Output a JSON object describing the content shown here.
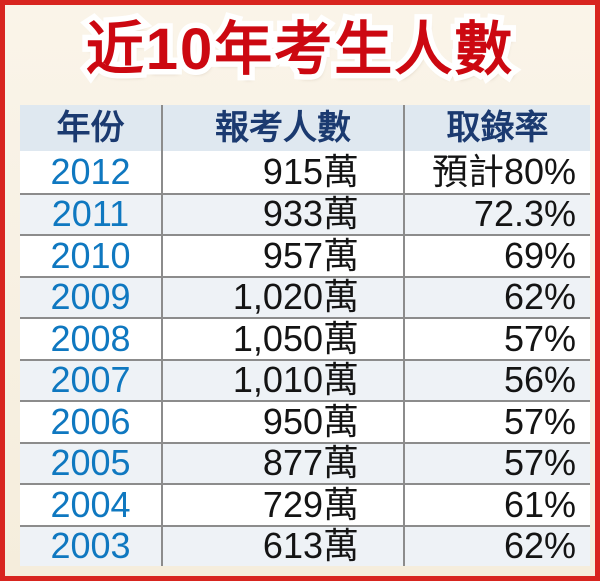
{
  "title": "近10年考生人數",
  "table": {
    "headers": {
      "year": "年份",
      "applicants": "報考人數",
      "rate": "取錄率"
    },
    "rows": [
      {
        "year": "2012",
        "applicants": "915萬",
        "rate": "預計80%"
      },
      {
        "year": "2011",
        "applicants": "933萬",
        "rate": "72.3%"
      },
      {
        "year": "2010",
        "applicants": "957萬",
        "rate": "69%"
      },
      {
        "year": "2009",
        "applicants": "1,020萬",
        "rate": "62%"
      },
      {
        "year": "2008",
        "applicants": "1,050萬",
        "rate": "57%"
      },
      {
        "year": "2007",
        "applicants": "1,010萬",
        "rate": "56%"
      },
      {
        "year": "2006",
        "applicants": "950萬",
        "rate": "57%"
      },
      {
        "year": "2005",
        "applicants": "877萬",
        "rate": "57%"
      },
      {
        "year": "2004",
        "applicants": "729萬",
        "rate": "61%"
      },
      {
        "year": "2003",
        "applicants": "613萬",
        "rate": "62%"
      }
    ]
  },
  "colors": {
    "border_red": "#d8251f",
    "title_red": "#cc0811",
    "background_cream_top": "#faf4e9",
    "background_cream_bottom": "#f5eddc",
    "header_bg": "#dfe8f0",
    "header_text": "#1b3a70",
    "year_blue": "#0f78c0",
    "row_alt_bg": "#eef2f6",
    "line_gray": "#8c8c8c"
  },
  "chart_data": {
    "type": "table",
    "title": "近10年考生人數",
    "columns": [
      "年份",
      "報考人數",
      "取錄率"
    ],
    "rows": [
      [
        "2012",
        "915萬",
        "預計80%"
      ],
      [
        "2011",
        "933萬",
        "72.3%"
      ],
      [
        "2010",
        "957萬",
        "69%"
      ],
      [
        "2009",
        "1,020萬",
        "62%"
      ],
      [
        "2008",
        "1,050萬",
        "57%"
      ],
      [
        "2007",
        "1,010萬",
        "56%"
      ],
      [
        "2006",
        "950萬",
        "57%"
      ],
      [
        "2005",
        "877萬",
        "57%"
      ],
      [
        "2004",
        "729萬",
        "61%"
      ],
      [
        "2003",
        "613萬",
        "62%"
      ]
    ],
    "years": [
      2012,
      2011,
      2010,
      2009,
      2008,
      2007,
      2006,
      2005,
      2004,
      2003
    ],
    "applicants_wan": [
      915,
      933,
      957,
      1020,
      1050,
      1010,
      950,
      877,
      729,
      613
    ],
    "admission_rate_pct": [
      80,
      72.3,
      69,
      62,
      57,
      56,
      57,
      57,
      61,
      62
    ],
    "notes": "2012 admission rate is an estimate (預計); applicant counts are in 萬 (10,000s)"
  }
}
